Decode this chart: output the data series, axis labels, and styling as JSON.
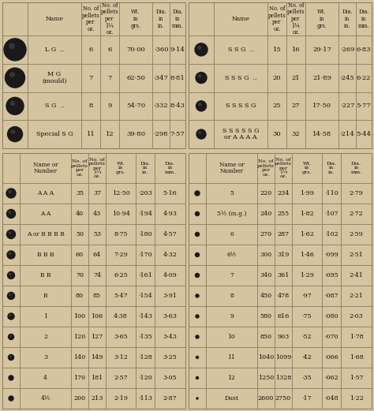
{
  "bg_color": "#d4c4a0",
  "top_left_rows": [
    {
      "name": "L G  ..",
      "p_oz": "6",
      "p_1oz": "6",
      "wt": "70·00",
      "din": "·360",
      "dmm": "9·14",
      "bsize": 28
    },
    {
      "name": "M G\n(mould)",
      "p_oz": "7",
      "p_1oz": "7",
      "wt": "62·50",
      "din": "·347",
      "dmm": "8·81",
      "bsize": 25
    },
    {
      "name": "S G  ..",
      "p_oz": "8",
      "p_1oz": "9",
      "wt": "54·70",
      "din": "·332",
      "dmm": "8·43",
      "bsize": 22
    },
    {
      "name": "Special S G",
      "p_oz": "11",
      "p_1oz": "12",
      "wt": "39·80",
      "din": "·298",
      "dmm": "7·57",
      "bsize": 19
    }
  ],
  "top_right_rows": [
    {
      "name": "S S G  ..",
      "p_oz": "15",
      "p_1oz": "16",
      "wt": "29·17",
      "din": "·269",
      "dmm": "6·83",
      "bsize": 16
    },
    {
      "name": "S S S G  ..",
      "p_oz": "20",
      "p_1oz": "21",
      "wt": "21·89",
      "din": "·245",
      "dmm": "6·22",
      "bsize": 14
    },
    {
      "name": "S S S S G",
      "p_oz": "25",
      "p_1oz": "27",
      "wt": "17·50",
      "din": "·227",
      "dmm": "5·77",
      "bsize": 13
    },
    {
      "name": "S S S S S G\nor A A A A",
      "p_oz": "30",
      "p_1oz": "32",
      "wt": "14·58",
      "din": "·214",
      "dmm": "5·44",
      "bsize": 12
    }
  ],
  "bot_left_rows": [
    {
      "name": "A A A",
      "p_oz": "35",
      "p_1oz": "37",
      "wt": "12·50",
      "din": "·203",
      "dmm": "5·16",
      "bsize": 12
    },
    {
      "name": "A A",
      "p_oz": "40",
      "p_1oz": "43",
      "wt": "10·94",
      "din": "·194",
      "dmm": "4·93",
      "bsize": 11
    },
    {
      "name": "A or B B B B",
      "p_oz": "50",
      "p_1oz": "53",
      "wt": "8·75",
      "din": "·180",
      "dmm": "4·57",
      "bsize": 11
    },
    {
      "name": "B B B",
      "p_oz": "60",
      "p_1oz": "64",
      "wt": "7·29",
      "din": "·170",
      "dmm": "4·32",
      "bsize": 10
    },
    {
      "name": "B B",
      "p_oz": "70",
      "p_1oz": "74",
      "wt": "6·25",
      "din": "·161",
      "dmm": "4·09",
      "bsize": 9
    },
    {
      "name": "B",
      "p_oz": "80",
      "p_1oz": "85",
      "wt": "5·47",
      "din": "·154",
      "dmm": "3·91",
      "bsize": 9
    },
    {
      "name": "1",
      "p_oz": "100",
      "p_1oz": "106",
      "wt": "4·38",
      "din": "·143",
      "dmm": "3·63",
      "bsize": 8
    },
    {
      "name": "2",
      "p_oz": "120",
      "p_1oz": "127",
      "wt": "3·65",
      "din": "·135",
      "dmm": "3·43",
      "bsize": 7
    },
    {
      "name": "3",
      "p_oz": "140",
      "p_1oz": "149",
      "wt": "3·12",
      "din": "·128",
      "dmm": "3·25",
      "bsize": 7
    },
    {
      "name": "4",
      "p_oz": "170",
      "p_1oz": "181",
      "wt": "2·57",
      "din": "·120",
      "dmm": "3·05",
      "bsize": 6
    },
    {
      "name": "4½",
      "p_oz": "200",
      "p_1oz": "213",
      "wt": "2·19",
      "din": "·113",
      "dmm": "2·87",
      "bsize": 6
    }
  ],
  "bot_right_rows": [
    {
      "name": "5",
      "p_oz": "220",
      "p_1oz": "234",
      "wt": "1·99",
      "din": "·110",
      "dmm": "2·79",
      "bsize": 6
    },
    {
      "name": "5½ (m.g.)",
      "p_oz": "240",
      "p_1oz": "255",
      "wt": "1·82",
      "din": "·107",
      "dmm": "2·72",
      "bsize": 5
    },
    {
      "name": "6",
      "p_oz": "270",
      "p_1oz": "287",
      "wt": "1·62",
      "din": "·102",
      "dmm": "2·59",
      "bsize": 5
    },
    {
      "name": "6½",
      "p_oz": "300",
      "p_1oz": "319",
      "wt": "1·46",
      "din": "·099",
      "dmm": "2·51",
      "bsize": 5
    },
    {
      "name": "7",
      "p_oz": "340",
      "p_1oz": "361",
      "wt": "1·29",
      "din": "·095",
      "dmm": "2·41",
      "bsize": 5
    },
    {
      "name": "8",
      "p_oz": "450",
      "p_1oz": "478",
      "wt": "·97",
      "din": "·087",
      "dmm": "2·21",
      "bsize": 4
    },
    {
      "name": "9",
      "p_oz": "580",
      "p_1oz": "616",
      "wt": "·75",
      "din": "·080",
      "dmm": "2·03",
      "bsize": 4
    },
    {
      "name": "10",
      "p_oz": "850",
      "p_1oz": "903",
      "wt": "·52",
      "din": "·070",
      "dmm": "1·78",
      "bsize": 4
    },
    {
      "name": "11",
      "p_oz": "1040",
      "p_1oz": "1099",
      "wt": "·42",
      "din": "·066",
      "dmm": "1·68",
      "bsize": 3
    },
    {
      "name": "12",
      "p_oz": "1250",
      "p_1oz": "1328",
      "wt": "·35",
      "din": "·062",
      "dmm": "1·57",
      "bsize": 3
    },
    {
      "name": "Dust",
      "p_oz": "2600",
      "p_1oz": "2750",
      "wt": "·17",
      "din": "·048",
      "dmm": "1·22",
      "bsize": 2
    }
  ],
  "hdr_top": [
    "Name",
    "No. of\npellets\nper\noz.",
    "No. of\npellets\nper\n1¼\noz.",
    "Wt.\nin\ngrs.",
    "Dia.\nin\nin.",
    "Dia.\nin\nmm."
  ],
  "hdr_bot": [
    "Name or\nNumber",
    "No. of\npellets\nper\noz.",
    "No. of\npellets\nper\n1¼\noz.",
    "Wt.\nin\ngrs.",
    "Dia.\nin\nin.",
    "Dia.\nin\nmm."
  ],
  "tc": "#1a1008",
  "lc": "#8a7a60"
}
